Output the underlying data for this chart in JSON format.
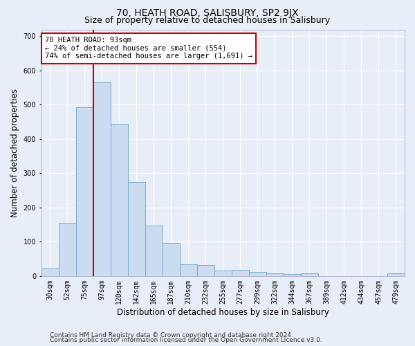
{
  "title": "70, HEATH ROAD, SALISBURY, SP2 9JX",
  "subtitle": "Size of property relative to detached houses in Salisbury",
  "xlabel": "Distribution of detached houses by size in Salisbury",
  "ylabel": "Number of detached properties",
  "footer_line1": "Contains HM Land Registry data © Crown copyright and database right 2024.",
  "footer_line2": "Contains public sector information licensed under the Open Government Licence v3.0.",
  "bin_labels": [
    "30sqm",
    "52sqm",
    "75sqm",
    "97sqm",
    "120sqm",
    "142sqm",
    "165sqm",
    "187sqm",
    "210sqm",
    "232sqm",
    "255sqm",
    "277sqm",
    "299sqm",
    "322sqm",
    "344sqm",
    "367sqm",
    "389sqm",
    "412sqm",
    "434sqm",
    "457sqm",
    "479sqm"
  ],
  "bar_values": [
    22,
    155,
    493,
    565,
    445,
    275,
    147,
    97,
    35,
    33,
    15,
    17,
    12,
    8,
    5,
    7,
    0,
    0,
    0,
    0,
    8
  ],
  "bar_color": "#ccdcf0",
  "bar_edgecolor": "#7aaad0",
  "annotation_text": "70 HEATH ROAD: 93sqm\n← 24% of detached houses are smaller (554)\n74% of semi-detached houses are larger (1,691) →",
  "annotation_box_color": "#ffffff",
  "annotation_box_edgecolor": "#cc0000",
  "ylim": [
    0,
    720
  ],
  "yticks": [
    0,
    100,
    200,
    300,
    400,
    500,
    600,
    700
  ],
  "bg_color": "#e8eef8",
  "axes_bg_color": "#e8eef8",
  "grid_color": "#ffffff",
  "red_line_color": "#cc0000",
  "title_fontsize": 10,
  "subtitle_fontsize": 9,
  "tick_fontsize": 7,
  "ylabel_fontsize": 8.5,
  "xlabel_fontsize": 8.5,
  "footer_fontsize": 6.5
}
